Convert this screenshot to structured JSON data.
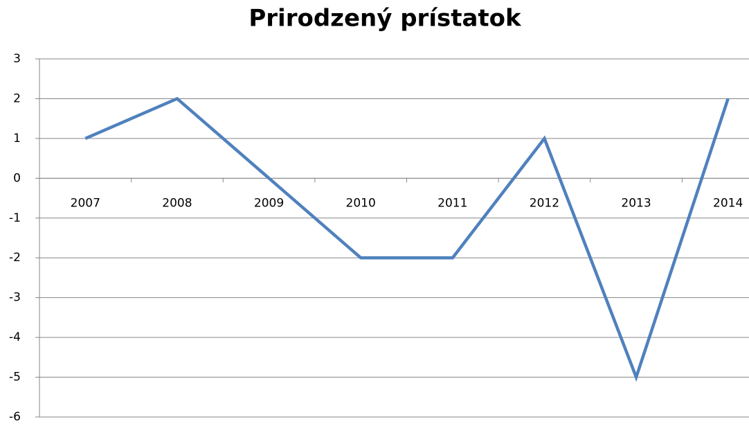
{
  "chart_data": {
    "type": "line",
    "title": "Prirodzený prístatok",
    "categories": [
      "2007",
      "2008",
      "2009",
      "2010",
      "2011",
      "2012",
      "2013",
      "2014"
    ],
    "series": [
      {
        "color": "#4f81bd",
        "values": [
          1,
          2,
          0,
          -2,
          -2,
          1,
          -5,
          2
        ]
      }
    ],
    "ylim": [
      -6,
      3
    ],
    "yticks": [
      -6,
      -5,
      -4,
      -3,
      -2,
      -1,
      0,
      1,
      2,
      3
    ],
    "grid": true
  }
}
